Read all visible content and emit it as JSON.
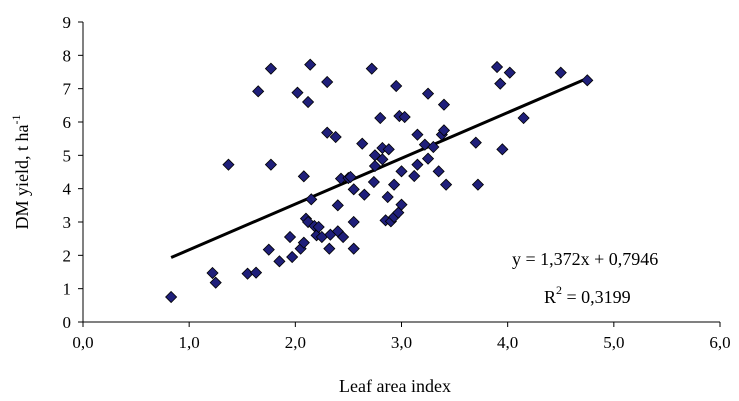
{
  "chart_data": {
    "type": "scatter",
    "title": "",
    "xlabel": "Leaf area index",
    "ylabel_main": "DM yield, t ha",
    "ylabel_sup": "-1",
    "xlim": [
      0,
      6
    ],
    "ylim": [
      0,
      9
    ],
    "x_ticks": [
      "0,0",
      "1,0",
      "2,0",
      "3,0",
      "4,0",
      "5,0",
      "6,0"
    ],
    "y_ticks": [
      "0",
      "1",
      "2",
      "3",
      "4",
      "5",
      "6",
      "7",
      "8",
      "9"
    ],
    "grid": false,
    "legend": "none",
    "marker": "diamond",
    "marker_color": "#1f1f7a",
    "trendline": {
      "slope": 1.372,
      "intercept": 0.7946,
      "x_range": [
        0.83,
        4.76
      ],
      "equation": "y = 1,372x + 0,7946",
      "r2_main": "R",
      "r2_sup": "2",
      "r2_value": " = 0,3199"
    },
    "points": [
      [
        0.83,
        0.75
      ],
      [
        1.22,
        1.47
      ],
      [
        1.25,
        1.18
      ],
      [
        1.37,
        4.72
      ],
      [
        1.55,
        1.45
      ],
      [
        1.63,
        1.48
      ],
      [
        1.65,
        6.92
      ],
      [
        1.75,
        2.17
      ],
      [
        1.77,
        7.6
      ],
      [
        1.77,
        4.72
      ],
      [
        1.85,
        1.82
      ],
      [
        1.95,
        2.55
      ],
      [
        1.97,
        1.95
      ],
      [
        2.02,
        6.88
      ],
      [
        2.05,
        2.2
      ],
      [
        2.08,
        4.37
      ],
      [
        2.08,
        2.38
      ],
      [
        2.1,
        3.1
      ],
      [
        2.12,
        6.6
      ],
      [
        2.12,
        3.0
      ],
      [
        2.14,
        7.72
      ],
      [
        2.15,
        3.68
      ],
      [
        2.18,
        2.88
      ],
      [
        2.2,
        2.6
      ],
      [
        2.22,
        2.85
      ],
      [
        2.25,
        2.55
      ],
      [
        2.3,
        5.68
      ],
      [
        2.3,
        7.2
      ],
      [
        2.32,
        2.2
      ],
      [
        2.33,
        2.62
      ],
      [
        2.38,
        5.55
      ],
      [
        2.4,
        2.72
      ],
      [
        2.4,
        3.5
      ],
      [
        2.43,
        4.3
      ],
      [
        2.45,
        2.55
      ],
      [
        2.5,
        4.32
      ],
      [
        2.52,
        4.35
      ],
      [
        2.55,
        3.98
      ],
      [
        2.55,
        3.0
      ],
      [
        2.55,
        2.2
      ],
      [
        2.63,
        5.35
      ],
      [
        2.65,
        3.82
      ],
      [
        2.72,
        7.6
      ],
      [
        2.74,
        4.2
      ],
      [
        2.75,
        5.0
      ],
      [
        2.75,
        4.68
      ],
      [
        2.8,
        6.12
      ],
      [
        2.82,
        5.22
      ],
      [
        2.82,
        4.88
      ],
      [
        2.85,
        3.05
      ],
      [
        2.87,
        3.75
      ],
      [
        2.88,
        5.18
      ],
      [
        2.9,
        3.02
      ],
      [
        2.93,
        4.12
      ],
      [
        2.93,
        3.15
      ],
      [
        2.95,
        7.08
      ],
      [
        2.97,
        3.28
      ],
      [
        2.98,
        6.18
      ],
      [
        3.0,
        4.52
      ],
      [
        3.0,
        3.52
      ],
      [
        3.03,
        6.15
      ],
      [
        3.12,
        4.38
      ],
      [
        3.15,
        5.62
      ],
      [
        3.15,
        4.72
      ],
      [
        3.22,
        5.32
      ],
      [
        3.25,
        6.85
      ],
      [
        3.25,
        4.9
      ],
      [
        3.3,
        5.25
      ],
      [
        3.35,
        4.52
      ],
      [
        3.38,
        5.62
      ],
      [
        3.4,
        6.52
      ],
      [
        3.4,
        5.75
      ],
      [
        3.42,
        4.12
      ],
      [
        3.7,
        5.38
      ],
      [
        3.72,
        4.12
      ],
      [
        3.9,
        7.65
      ],
      [
        3.93,
        7.15
      ],
      [
        3.95,
        5.18
      ],
      [
        4.02,
        7.48
      ],
      [
        4.15,
        6.12
      ],
      [
        4.5,
        7.48
      ],
      [
        4.75,
        7.25
      ]
    ]
  }
}
